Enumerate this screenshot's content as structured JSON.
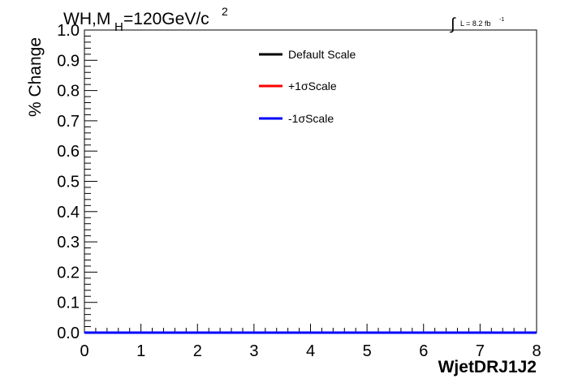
{
  "chart_data": {
    "type": "line",
    "title_main": "WH,M",
    "title_sub": "H",
    "title_rest": "=120GeV/c",
    "title_sup": "2",
    "lumi_label": "L = 8.2 fb",
    "lumi_sup": "-1",
    "xlabel": "WjetDRJ1J2",
    "ylabel": "% Change",
    "xlim": [
      0,
      8
    ],
    "ylim": [
      0,
      1
    ],
    "x_ticks": [
      "0",
      "1",
      "2",
      "3",
      "4",
      "5",
      "6",
      "7",
      "8"
    ],
    "y_ticks": [
      "0.0",
      "0.1",
      "0.2",
      "0.3",
      "0.4",
      "0.5",
      "0.6",
      "0.7",
      "0.8",
      "0.9",
      "1.0"
    ],
    "grid": false,
    "legend_position": "top-center",
    "series": [
      {
        "name": "Default Scale",
        "color": "#000000",
        "x": [
          0,
          8
        ],
        "y": [
          0,
          0
        ]
      },
      {
        "name": "+1σScale",
        "color": "#ff0000",
        "x": [
          0,
          8
        ],
        "y": [
          0,
          0
        ]
      },
      {
        "name": "-1σScale",
        "color": "#0000ff",
        "x": [
          0,
          8
        ],
        "y": [
          0,
          0
        ]
      }
    ]
  }
}
